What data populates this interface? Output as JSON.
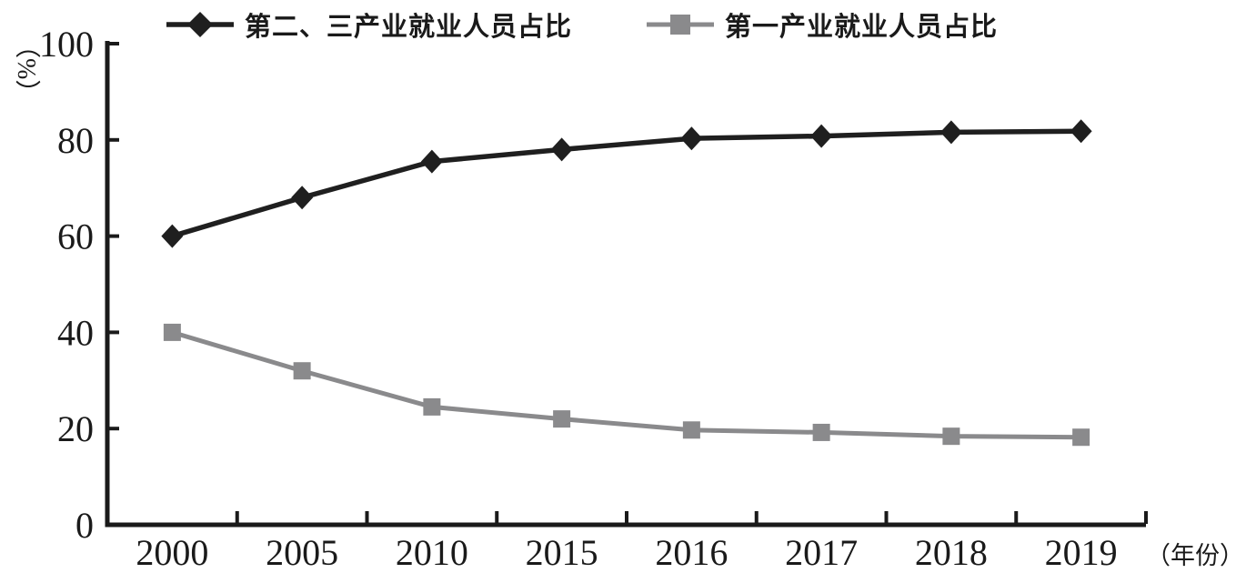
{
  "chart_data": {
    "type": "line",
    "categories": [
      "2000",
      "2005",
      "2010",
      "2015",
      "2016",
      "2017",
      "2018",
      "2019"
    ],
    "series": [
      {
        "name": "第二、三产业就业人员占比",
        "marker": "diamond",
        "color": "#1f1f1f",
        "values": [
          60,
          68,
          75.5,
          78,
          80.3,
          80.8,
          81.6,
          81.8
        ]
      },
      {
        "name": "第一产业就业人员占比",
        "marker": "square",
        "color": "#8a8a8c",
        "values": [
          40,
          32,
          24.5,
          22,
          19.7,
          19.2,
          18.4,
          18.2
        ]
      }
    ],
    "title": "",
    "xlabel": "（年份）",
    "ylabel": "（%）",
    "ylim": [
      0,
      100
    ],
    "y_ticks": [
      0,
      20,
      40,
      60,
      80,
      100
    ],
    "grid": false,
    "legend_position": "top",
    "axis_color": "#1a1a1a"
  }
}
